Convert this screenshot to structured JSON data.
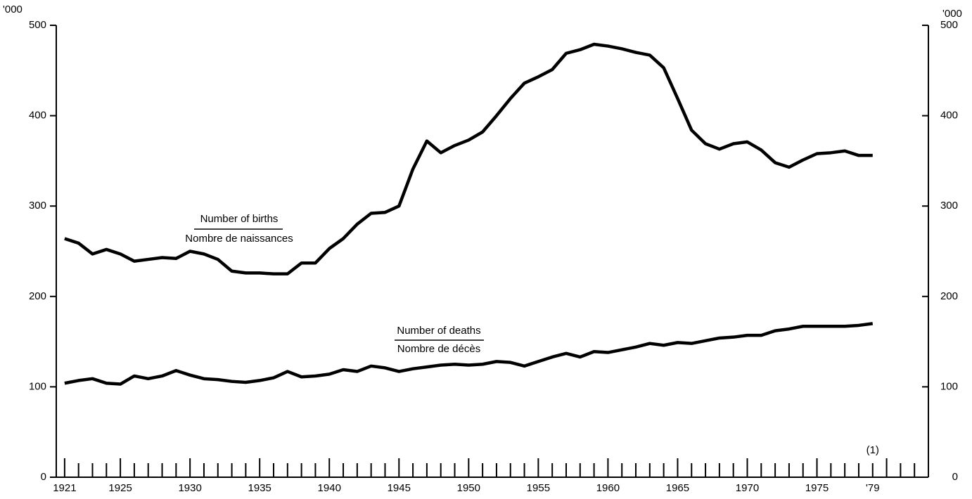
{
  "chart_data": {
    "type": "line",
    "x": [
      1921,
      1922,
      1923,
      1924,
      1925,
      1926,
      1927,
      1928,
      1929,
      1930,
      1931,
      1932,
      1933,
      1934,
      1935,
      1936,
      1937,
      1938,
      1939,
      1940,
      1941,
      1942,
      1943,
      1944,
      1945,
      1946,
      1947,
      1948,
      1949,
      1950,
      1951,
      1952,
      1953,
      1954,
      1955,
      1956,
      1957,
      1958,
      1959,
      1960,
      1961,
      1962,
      1963,
      1964,
      1965,
      1966,
      1967,
      1968,
      1969,
      1970,
      1971,
      1972,
      1973,
      1974,
      1975,
      1976,
      1977,
      1978,
      1979
    ],
    "series": [
      {
        "name": "Number of births",
        "name_fr": "Nombre de naissances",
        "color": "#000000",
        "values": [
          264,
          259,
          247,
          252,
          247,
          239,
          241,
          243,
          242,
          250,
          247,
          241,
          228,
          226,
          226,
          225,
          225,
          237,
          237,
          253,
          264,
          280,
          292,
          293,
          300,
          341,
          372,
          359,
          367,
          373,
          382,
          400,
          419,
          436,
          443,
          451,
          469,
          473,
          479,
          477,
          474,
          470,
          467,
          453,
          419,
          384,
          369,
          363,
          369,
          371,
          362,
          348,
          343,
          351,
          358,
          359,
          361,
          356,
          356
        ]
      },
      {
        "name": "Number of deaths",
        "name_fr": "Nombre de décès",
        "color": "#000000",
        "values": [
          104,
          107,
          109,
          104,
          103,
          112,
          109,
          112,
          118,
          113,
          109,
          108,
          106,
          105,
          107,
          110,
          117,
          111,
          112,
          114,
          119,
          117,
          123,
          121,
          117,
          120,
          122,
          124,
          125,
          124,
          125,
          128,
          127,
          123,
          128,
          133,
          137,
          133,
          139,
          138,
          141,
          144,
          148,
          146,
          149,
          148,
          151,
          154,
          155,
          157,
          157,
          162,
          164,
          167,
          167,
          167,
          167,
          168,
          170
        ]
      }
    ],
    "xlim": [
      1920.4,
      1983.0
    ],
    "xticks": [
      1921,
      1925,
      1930,
      1935,
      1940,
      1945,
      1950,
      1955,
      1960,
      1965,
      1970,
      1975,
      {
        "value": 1979,
        "label": "'79"
      }
    ],
    "xticks_minor": [
      1921,
      1922,
      1923,
      1924,
      1925,
      1926,
      1927,
      1928,
      1929,
      1930,
      1931,
      1932,
      1933,
      1934,
      1935,
      1936,
      1937,
      1938,
      1939,
      1940,
      1941,
      1942,
      1943,
      1944,
      1945,
      1946,
      1947,
      1948,
      1949,
      1950,
      1951,
      1952,
      1953,
      1954,
      1955,
      1956,
      1957,
      1958,
      1959,
      1960,
      1961,
      1962,
      1963,
      1964,
      1965,
      1966,
      1967,
      1968,
      1969,
      1970,
      1971,
      1972,
      1973,
      1974,
      1975,
      1976,
      1977,
      1978,
      1979,
      1980,
      1981,
      1982
    ],
    "ylim": [
      0,
      500
    ],
    "yticks": [
      0,
      100,
      200,
      300,
      400,
      500
    ],
    "y_unit": "'000",
    "y2_unit": "'000",
    "annotation": "(1)"
  }
}
